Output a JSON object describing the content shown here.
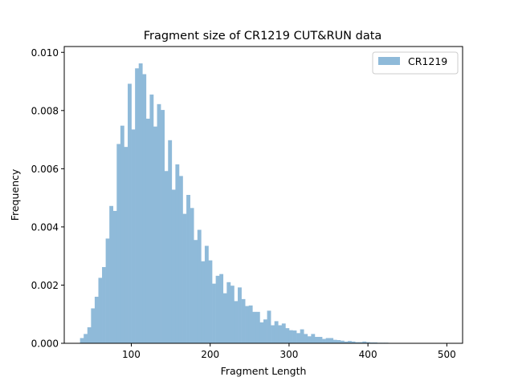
{
  "chart_data": {
    "type": "bar",
    "title": "Fragment size of CR1219 CUT&RUN data",
    "xlabel": "Fragment Length",
    "ylabel": "Frequency",
    "xlim": [
      15,
      520
    ],
    "ylim": [
      0,
      0.0102
    ],
    "xticks": [
      100,
      200,
      300,
      400,
      500
    ],
    "xtick_labels": [
      "100",
      "200",
      "300",
      "400",
      "500"
    ],
    "yticks": [
      0,
      0.002,
      0.004,
      0.006,
      0.008,
      0.01
    ],
    "ytick_labels": [
      "0.000",
      "0.002",
      "0.004",
      "0.006",
      "0.008",
      "0.010"
    ],
    "bin_start": 35,
    "bin_width": 4.65,
    "grid": false,
    "legend_position": "top-right",
    "series": [
      {
        "name": "CR1219",
        "color": "#8fbad9",
        "values": [
          0.00018,
          0.00032,
          0.00055,
          0.0012,
          0.0016,
          0.00225,
          0.00262,
          0.0036,
          0.00472,
          0.00455,
          0.00685,
          0.00748,
          0.00675,
          0.00892,
          0.00735,
          0.00945,
          0.00962,
          0.00925,
          0.00772,
          0.00855,
          0.00745,
          0.00822,
          0.00802,
          0.00592,
          0.00698,
          0.00528,
          0.00615,
          0.00575,
          0.00445,
          0.0051,
          0.00465,
          0.00355,
          0.0039,
          0.00282,
          0.00335,
          0.00285,
          0.00205,
          0.00232,
          0.00238,
          0.00172,
          0.0021,
          0.00198,
          0.00145,
          0.00192,
          0.00152,
          0.00128,
          0.0013,
          0.00108,
          0.00108,
          0.00072,
          0.00082,
          0.00112,
          0.00062,
          0.00076,
          0.00062,
          0.00068,
          0.00052,
          0.00045,
          0.00044,
          0.00035,
          0.00048,
          0.00032,
          0.00024,
          0.00032,
          0.00022,
          0.00022,
          0.00015,
          0.00018,
          0.00018,
          0.00012,
          0.00011,
          9e-05,
          6e-05,
          8e-05,
          6e-05,
          4e-05,
          4e-05,
          6e-05,
          4e-05,
          3e-05,
          3e-05,
          2e-05,
          2e-05,
          2e-05,
          1e-05,
          1e-05,
          1e-05,
          1e-05,
          1e-05,
          1e-05,
          1e-05,
          1e-05,
          1e-05,
          5e-06,
          5e-06,
          5e-06,
          5e-06,
          5e-06,
          5e-06,
          5e-06
        ]
      }
    ]
  }
}
